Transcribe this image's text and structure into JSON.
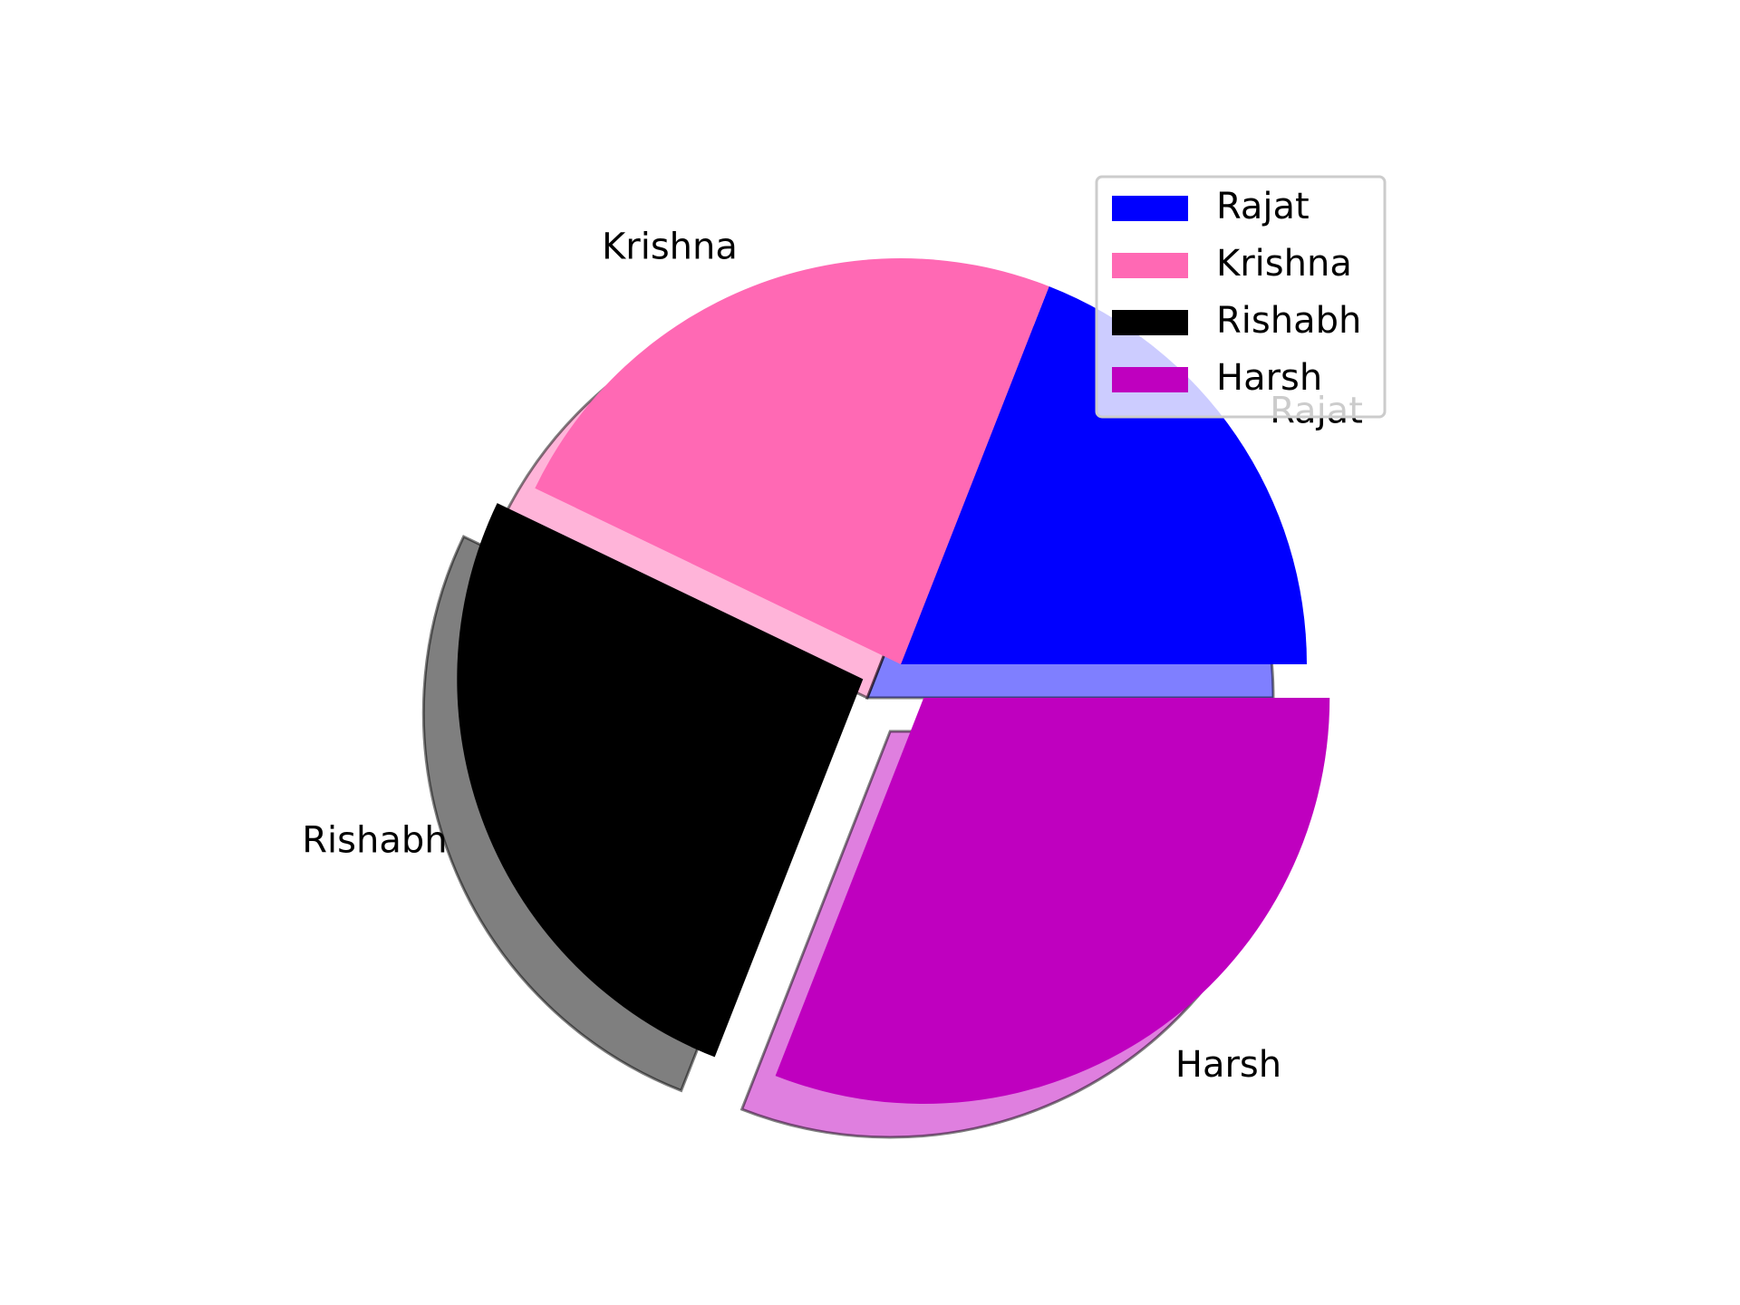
{
  "chart_data": {
    "type": "pie",
    "slices": [
      {
        "label": "Rajat",
        "percent": 19.05,
        "color": "#0000ff",
        "exploded": false
      },
      {
        "label": "Krishna",
        "percent": 23.81,
        "color": "#ff69b4",
        "exploded": false
      },
      {
        "label": "Rishabh",
        "percent": 26.19,
        "color": "#000000",
        "exploded": true
      },
      {
        "label": "Harsh",
        "percent": 30.95,
        "color": "#bf00bf",
        "exploded": true
      }
    ],
    "start_angle_deg": 0,
    "direction": "counterclockwise",
    "shadow": true,
    "legend": {
      "placement": "upper right",
      "entries": [
        "Rajat",
        "Krishna",
        "Rishabh",
        "Harsh"
      ]
    }
  }
}
